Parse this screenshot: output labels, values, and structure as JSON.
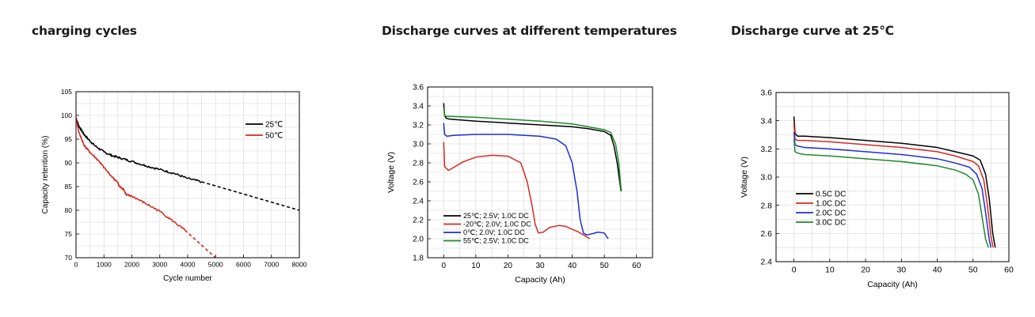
{
  "headings": {
    "left": "charging cycles",
    "middle": "Discharge curves at different temperatures",
    "right": "Discharge curve at 25℃"
  },
  "chart_data": [
    {
      "id": "cycles",
      "type": "line",
      "xlabel": "Cycle number",
      "ylabel": "Capacity retention (%)",
      "xlim": [
        0,
        8000
      ],
      "ylim": [
        70,
        105
      ],
      "xticks": [
        0,
        1000,
        2000,
        3000,
        4000,
        5000,
        6000,
        7000,
        8000
      ],
      "yticks": [
        70,
        75,
        80,
        85,
        90,
        95,
        100,
        105
      ],
      "grid": true,
      "legend_position": "top-right",
      "series": [
        {
          "name": "25℃",
          "color": "#000000",
          "noise": true,
          "x": [
            0,
            100,
            200,
            300,
            500,
            700,
            1000,
            1300,
            1600,
            2000,
            2500,
            3000,
            3500,
            4000,
            4500
          ],
          "y": [
            99.5,
            97.8,
            96.8,
            95.9,
            94.6,
            93.5,
            92.3,
            91.5,
            91.0,
            90.3,
            89.4,
            88.6,
            87.8,
            86.7,
            86.0
          ]
        },
        {
          "name": "",
          "color": "#000000",
          "dashed": true,
          "x": [
            4500,
            8000
          ],
          "y": [
            86.0,
            80.0
          ]
        },
        {
          "name": "50℃",
          "color": "#d42a1e",
          "noise": true,
          "x": [
            0,
            100,
            200,
            300,
            500,
            800,
            1000,
            1300,
            1500,
            1550,
            1700,
            1800,
            2000,
            2500,
            3000,
            3500,
            3900
          ],
          "y": [
            99.5,
            96.5,
            95.0,
            93.6,
            92.2,
            90.5,
            89.0,
            87.0,
            85.8,
            85.0,
            84.5,
            83.2,
            83.0,
            81.4,
            79.8,
            77.6,
            75.8
          ]
        },
        {
          "name": "",
          "color": "#d42a1e",
          "dashed": true,
          "x": [
            3900,
            5000
          ],
          "y": [
            75.8,
            70.0
          ]
        }
      ]
    },
    {
      "id": "temperatures",
      "type": "line",
      "xlabel": "Capacity (Ah)",
      "ylabel": "Voltage (V)",
      "xlim": [
        -5,
        65
      ],
      "ylim": [
        1.8,
        3.6
      ],
      "xticks": [
        0,
        10,
        20,
        30,
        40,
        50,
        60
      ],
      "yticks": [
        1.8,
        2.0,
        2.2,
        2.4,
        2.6,
        2.8,
        3.0,
        3.2,
        3.4,
        3.6
      ],
      "grid": true,
      "legend_position": "bottom-left",
      "series": [
        {
          "name": "25℃; 2.5V; 1.0C DC",
          "color": "#000000",
          "x": [
            0,
            0.3,
            0.8,
            2,
            10,
            20,
            30,
            40,
            45,
            50,
            52,
            53,
            54,
            54.8,
            55.2
          ],
          "y": [
            3.43,
            3.3,
            3.27,
            3.26,
            3.24,
            3.22,
            3.2,
            3.18,
            3.16,
            3.13,
            3.09,
            2.98,
            2.8,
            2.6,
            2.5
          ]
        },
        {
          "name": "-20℃; 2.0V; 1.0C DC",
          "color": "#d42a1e",
          "x": [
            0,
            0.3,
            1.5,
            3,
            6,
            10,
            15,
            20,
            24,
            26,
            27.5,
            28.5,
            29.5,
            31,
            33,
            36,
            38,
            40,
            42,
            44,
            45.5
          ],
          "y": [
            3.02,
            2.76,
            2.72,
            2.75,
            2.81,
            2.86,
            2.88,
            2.87,
            2.8,
            2.6,
            2.35,
            2.15,
            2.06,
            2.07,
            2.12,
            2.14,
            2.13,
            2.1,
            2.07,
            2.03,
            2.0
          ]
        },
        {
          "name": "0℃; 2.0V; 1.0C DC",
          "color": "#1c2fd6",
          "x": [
            0,
            0.3,
            1,
            3,
            10,
            20,
            30,
            35,
            38,
            40,
            41.5,
            42.5,
            43.5,
            44.5,
            46,
            48,
            50,
            51.2
          ],
          "y": [
            3.22,
            3.1,
            3.08,
            3.09,
            3.1,
            3.1,
            3.08,
            3.05,
            2.98,
            2.8,
            2.5,
            2.2,
            2.06,
            2.04,
            2.05,
            2.07,
            2.06,
            2.0
          ]
        },
        {
          "name": "55℃; 2.5V; 1.0C DC",
          "color": "#1f8a2a",
          "x": [
            0,
            0.3,
            0.8,
            2,
            10,
            20,
            30,
            40,
            45,
            50,
            52,
            53.5,
            54.5,
            55,
            55.3
          ],
          "y": [
            3.38,
            3.3,
            3.29,
            3.29,
            3.28,
            3.26,
            3.24,
            3.21,
            3.18,
            3.15,
            3.12,
            3.0,
            2.8,
            2.6,
            2.5
          ]
        }
      ]
    },
    {
      "id": "rates",
      "type": "line",
      "xlabel": "Capacity (Ah)",
      "ylabel": "Voltage (V)",
      "xlim": [
        -5,
        60
      ],
      "ylim": [
        2.4,
        3.6
      ],
      "xticks": [
        0,
        10,
        20,
        30,
        40,
        50,
        60
      ],
      "yticks": [
        2.4,
        2.6,
        2.8,
        3.0,
        3.2,
        3.4,
        3.6
      ],
      "grid": true,
      "legend_position": "bottom-left",
      "series": [
        {
          "name": "0.5C DC",
          "color": "#000000",
          "x": [
            0,
            0.3,
            1,
            3,
            10,
            20,
            30,
            40,
            45,
            50,
            52,
            53.5,
            54.5,
            55.5,
            56.2
          ],
          "y": [
            3.43,
            3.31,
            3.29,
            3.29,
            3.28,
            3.26,
            3.24,
            3.21,
            3.18,
            3.15,
            3.12,
            3.02,
            2.85,
            2.6,
            2.5
          ]
        },
        {
          "name": "1.0C DC",
          "color": "#d42a1e",
          "x": [
            0,
            0.3,
            1,
            3,
            10,
            20,
            30,
            40,
            45,
            50,
            51.5,
            53,
            54,
            55,
            55.6
          ],
          "y": [
            3.38,
            3.27,
            3.26,
            3.26,
            3.25,
            3.23,
            3.21,
            3.18,
            3.15,
            3.11,
            3.08,
            2.98,
            2.8,
            2.58,
            2.5
          ]
        },
        {
          "name": "2.0C DC",
          "color": "#1c2fd6",
          "x": [
            0,
            0.3,
            1,
            3,
            10,
            20,
            30,
            40,
            45,
            49,
            51,
            52.5,
            53.5,
            54.5,
            55
          ],
          "y": [
            3.32,
            3.23,
            3.22,
            3.21,
            3.2,
            3.18,
            3.16,
            3.13,
            3.1,
            3.07,
            3.02,
            2.92,
            2.75,
            2.56,
            2.5
          ]
        },
        {
          "name": "3.0C DC",
          "color": "#1f8a2a",
          "x": [
            0,
            0.3,
            1,
            3,
            10,
            20,
            30,
            40,
            45,
            48,
            50,
            51.5,
            52.5,
            53.5,
            54.3
          ],
          "y": [
            3.27,
            3.18,
            3.17,
            3.16,
            3.15,
            3.13,
            3.11,
            3.08,
            3.05,
            3.02,
            2.98,
            2.88,
            2.72,
            2.56,
            2.5
          ]
        }
      ]
    }
  ]
}
